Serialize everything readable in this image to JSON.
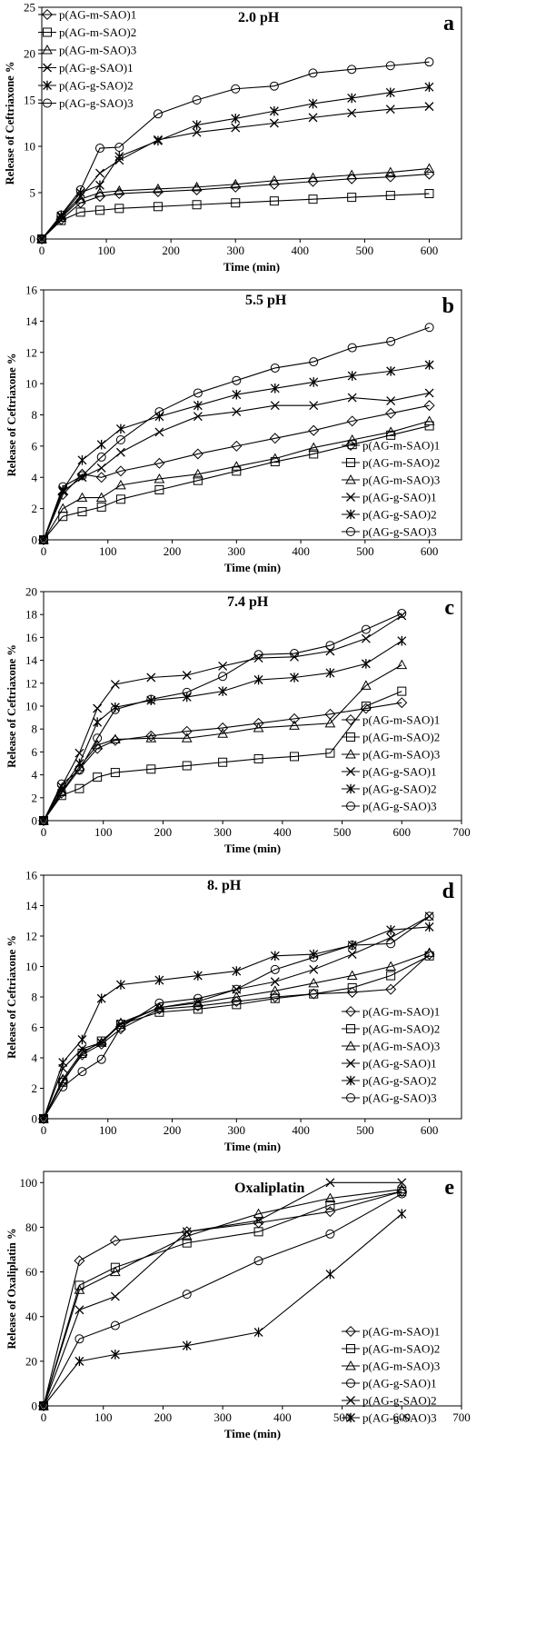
{
  "chart_data": [
    {
      "type": "line",
      "panel_label": "a",
      "title": "2.0 pH",
      "xlabel": "Time (min)",
      "ylabel": "Release of  Ceftriaxone %",
      "xlim": [
        0,
        650
      ],
      "ylim": [
        0,
        25
      ],
      "xticks": [
        0,
        100,
        200,
        300,
        400,
        500,
        600
      ],
      "yticks": [
        0,
        5,
        10,
        15,
        20,
        25
      ],
      "legend_position": "top-left",
      "series": [
        {
          "name": "p(AG-m-SAO)1",
          "marker": "diamond",
          "x": [
            0,
            30,
            60,
            90,
            120,
            180,
            240,
            300,
            360,
            420,
            480,
            540,
            600
          ],
          "y": [
            0,
            2.1,
            3.9,
            4.6,
            4.9,
            5.1,
            5.3,
            5.6,
            5.9,
            6.2,
            6.5,
            6.7,
            7.0
          ]
        },
        {
          "name": "p(AG-m-SAO)2",
          "marker": "square",
          "x": [
            0,
            30,
            60,
            90,
            120,
            180,
            240,
            300,
            360,
            420,
            480,
            540,
            600
          ],
          "y": [
            0,
            2.0,
            2.9,
            3.1,
            3.3,
            3.5,
            3.7,
            3.9,
            4.1,
            4.3,
            4.5,
            4.7,
            4.9
          ]
        },
        {
          "name": "p(AG-m-SAO)3",
          "marker": "triangle",
          "x": [
            0,
            30,
            60,
            90,
            120,
            180,
            240,
            300,
            360,
            420,
            480,
            540,
            600
          ],
          "y": [
            0,
            2.3,
            4.3,
            5.0,
            5.2,
            5.4,
            5.6,
            5.9,
            6.3,
            6.6,
            6.9,
            7.2,
            7.6
          ]
        },
        {
          "name": "p(AG-g-SAO)1",
          "marker": "x",
          "x": [
            0,
            30,
            60,
            90,
            120,
            180,
            240,
            300,
            360,
            420,
            480,
            540,
            600
          ],
          "y": [
            0,
            2.4,
            4.6,
            7.1,
            8.5,
            10.7,
            11.5,
            12.0,
            12.5,
            13.1,
            13.6,
            14.0,
            14.3
          ]
        },
        {
          "name": "p(AG-g-SAO)2",
          "marker": "asterisk",
          "x": [
            0,
            30,
            60,
            90,
            120,
            180,
            240,
            300,
            360,
            420,
            480,
            540,
            600
          ],
          "y": [
            0,
            2.5,
            5.0,
            5.8,
            8.9,
            10.6,
            12.3,
            13.0,
            13.8,
            14.6,
            15.2,
            15.8,
            16.4
          ]
        },
        {
          "name": "p(AG-g-SAO)3",
          "marker": "circle",
          "x": [
            0,
            30,
            60,
            90,
            120,
            180,
            240,
            300,
            360,
            420,
            480,
            540,
            600
          ],
          "y": [
            0,
            2.6,
            5.3,
            9.8,
            9.9,
            13.5,
            15.0,
            16.2,
            16.5,
            17.9,
            18.3,
            18.7,
            19.1
          ]
        }
      ]
    },
    {
      "type": "line",
      "panel_label": "b",
      "title": "5.5 pH",
      "xlabel": "Time (min)",
      "ylabel": "Release of Ceftriaxone %",
      "xlim": [
        0,
        650
      ],
      "ylim": [
        0,
        16
      ],
      "xticks": [
        0,
        100,
        200,
        300,
        400,
        500,
        600
      ],
      "yticks": [
        0,
        2,
        4,
        6,
        8,
        10,
        12,
        14,
        16
      ],
      "legend_position": "bottom-right",
      "series": [
        {
          "name": "p(AG-m-SAO)1",
          "marker": "diamond",
          "x": [
            0,
            30,
            60,
            90,
            120,
            180,
            240,
            300,
            360,
            420,
            480,
            540,
            600
          ],
          "y": [
            0,
            2.9,
            4.2,
            4.0,
            4.4,
            4.9,
            5.5,
            6.0,
            6.5,
            7.0,
            7.6,
            8.1,
            8.6
          ]
        },
        {
          "name": "p(AG-m-SAO)2",
          "marker": "square",
          "x": [
            0,
            30,
            60,
            90,
            120,
            180,
            240,
            300,
            360,
            420,
            480,
            540,
            600
          ],
          "y": [
            0,
            1.5,
            1.8,
            2.1,
            2.6,
            3.2,
            3.8,
            4.4,
            5.0,
            5.5,
            6.1,
            6.7,
            7.3
          ]
        },
        {
          "name": "p(AG-m-SAO)3",
          "marker": "triangle",
          "x": [
            0,
            30,
            60,
            90,
            120,
            180,
            240,
            300,
            360,
            420,
            480,
            540,
            600
          ],
          "y": [
            0,
            2.0,
            2.7,
            2.7,
            3.5,
            3.9,
            4.2,
            4.7,
            5.2,
            5.9,
            6.4,
            6.9,
            7.6
          ]
        },
        {
          "name": "p(AG-g-SAO)1",
          "marker": "x",
          "x": [
            0,
            30,
            60,
            90,
            120,
            180,
            240,
            300,
            360,
            420,
            480,
            540,
            600
          ],
          "y": [
            0,
            3.1,
            4.0,
            4.6,
            5.6,
            6.9,
            7.9,
            8.2,
            8.6,
            8.6,
            9.1,
            8.9,
            9.4
          ]
        },
        {
          "name": "p(AG-g-SAO)2",
          "marker": "asterisk",
          "x": [
            0,
            30,
            60,
            90,
            120,
            180,
            240,
            300,
            360,
            420,
            480,
            540,
            600
          ],
          "y": [
            0,
            3.2,
            5.1,
            6.1,
            7.1,
            7.9,
            8.6,
            9.3,
            9.7,
            10.1,
            10.5,
            10.8,
            11.2
          ]
        },
        {
          "name": "p(AG-g-SAO)3",
          "marker": "circle",
          "x": [
            0,
            30,
            60,
            90,
            120,
            180,
            240,
            300,
            360,
            420,
            480,
            540,
            600
          ],
          "y": [
            0,
            3.4,
            4.1,
            5.3,
            6.4,
            8.2,
            9.4,
            10.2,
            11.0,
            11.4,
            12.3,
            12.7,
            13.6
          ]
        }
      ]
    },
    {
      "type": "line",
      "panel_label": "c",
      "title": "7.4 pH",
      "xlabel": "Time (min)",
      "ylabel": "Release of  Ceftriaxone %",
      "xlim": [
        0,
        700
      ],
      "ylim": [
        0,
        20
      ],
      "xticks": [
        0,
        100,
        200,
        300,
        400,
        500,
        600,
        700
      ],
      "yticks": [
        0,
        2,
        4,
        6,
        8,
        10,
        12,
        14,
        16,
        18,
        20
      ],
      "legend_position": "bottom-right",
      "series": [
        {
          "name": "p(AG-m-SAO)1",
          "marker": "diamond",
          "x": [
            0,
            30,
            60,
            90,
            120,
            180,
            240,
            300,
            360,
            420,
            480,
            540,
            600
          ],
          "y": [
            0,
            2.4,
            4.5,
            6.3,
            7.0,
            7.4,
            7.8,
            8.1,
            8.5,
            8.9,
            9.3,
            9.8,
            10.3
          ]
        },
        {
          "name": "p(AG-m-SAO)2",
          "marker": "square",
          "x": [
            0,
            30,
            60,
            90,
            120,
            180,
            240,
            300,
            360,
            420,
            480,
            540,
            600
          ],
          "y": [
            0,
            2.2,
            2.8,
            3.8,
            4.2,
            4.5,
            4.8,
            5.1,
            5.4,
            5.6,
            5.9,
            10.0,
            11.3
          ]
        },
        {
          "name": "p(AG-m-SAO)3",
          "marker": "triangle",
          "x": [
            0,
            30,
            60,
            90,
            120,
            180,
            240,
            300,
            360,
            420,
            480,
            540,
            600
          ],
          "y": [
            0,
            2.5,
            4.7,
            6.6,
            7.1,
            7.2,
            7.2,
            7.6,
            8.1,
            8.3,
            8.5,
            11.8,
            13.6
          ]
        },
        {
          "name": "p(AG-g-SAO)1",
          "marker": "x",
          "x": [
            0,
            30,
            60,
            90,
            120,
            180,
            240,
            300,
            360,
            420,
            480,
            540,
            600
          ],
          "y": [
            0,
            3.0,
            5.9,
            9.8,
            11.9,
            12.5,
            12.7,
            13.5,
            14.2,
            14.3,
            14.8,
            15.9,
            17.9
          ]
        },
        {
          "name": "p(AG-g-SAO)2",
          "marker": "asterisk",
          "x": [
            0,
            30,
            60,
            90,
            120,
            180,
            240,
            300,
            360,
            420,
            480,
            540,
            600
          ],
          "y": [
            0,
            2.7,
            5.0,
            8.6,
            9.9,
            10.5,
            10.8,
            11.3,
            12.3,
            12.5,
            12.9,
            13.7,
            15.7
          ]
        },
        {
          "name": "p(AG-g-SAO)3",
          "marker": "circle",
          "x": [
            0,
            30,
            60,
            90,
            120,
            180,
            240,
            300,
            360,
            420,
            480,
            540,
            600
          ],
          "y": [
            0,
            3.2,
            4.4,
            7.2,
            9.7,
            10.6,
            11.2,
            12.6,
            14.5,
            14.6,
            15.3,
            16.7,
            18.1
          ]
        }
      ]
    },
    {
      "type": "line",
      "panel_label": "d",
      "title": "8.  pH",
      "xlabel": "Time (min)",
      "ylabel": "Release of Ceftriaxone %",
      "xlim": [
        0,
        650
      ],
      "ylim": [
        0,
        16
      ],
      "xticks": [
        0,
        100,
        200,
        300,
        400,
        500,
        600
      ],
      "yticks": [
        0,
        2,
        4,
        6,
        8,
        10,
        12,
        14,
        16
      ],
      "legend_position": "bottom-right",
      "series": [
        {
          "name": "p(AG-m-SAO)1",
          "marker": "diamond",
          "x": [
            0,
            30,
            60,
            90,
            120,
            180,
            240,
            300,
            360,
            420,
            480,
            540,
            600
          ],
          "y": [
            0,
            2.5,
            4.2,
            4.9,
            5.9,
            7.2,
            7.4,
            7.7,
            8.0,
            8.2,
            8.3,
            8.5,
            10.8
          ]
        },
        {
          "name": "p(AG-m-SAO)2",
          "marker": "square",
          "x": [
            0,
            30,
            60,
            90,
            120,
            180,
            240,
            300,
            360,
            420,
            480,
            540,
            600
          ],
          "y": [
            0,
            2.4,
            4.3,
            5.1,
            6.2,
            7.0,
            7.2,
            7.5,
            7.9,
            8.2,
            8.6,
            9.4,
            10.7
          ]
        },
        {
          "name": "p(AG-m-SAO)3",
          "marker": "triangle",
          "x": [
            0,
            30,
            60,
            90,
            120,
            180,
            240,
            300,
            360,
            420,
            480,
            540,
            600
          ],
          "y": [
            0,
            2.6,
            4.4,
            5.0,
            6.3,
            7.3,
            7.6,
            8.0,
            8.4,
            8.9,
            9.4,
            10.0,
            10.9
          ]
        },
        {
          "name": "p(AG-g-SAO)1",
          "marker": "x",
          "x": [
            0,
            30,
            60,
            90,
            120,
            180,
            240,
            300,
            360,
            420,
            480,
            540,
            600
          ],
          "y": [
            0,
            3.3,
            4.6,
            5.0,
            6.2,
            7.3,
            7.7,
            8.5,
            9.0,
            9.8,
            10.8,
            11.9,
            13.3
          ]
        },
        {
          "name": "p(AG-g-SAO)2",
          "marker": "asterisk",
          "x": [
            0,
            30,
            60,
            90,
            120,
            180,
            240,
            300,
            360,
            420,
            480,
            540,
            600
          ],
          "y": [
            0,
            3.7,
            5.2,
            7.9,
            8.8,
            9.1,
            9.4,
            9.7,
            10.7,
            10.8,
            11.4,
            12.4,
            12.6
          ]
        },
        {
          "name": "p(AG-g-SAO)3",
          "marker": "circle",
          "x": [
            0,
            30,
            60,
            90,
            120,
            180,
            240,
            300,
            360,
            420,
            480,
            540,
            600
          ],
          "y": [
            0,
            2.1,
            3.1,
            3.9,
            6.0,
            7.6,
            7.9,
            8.5,
            9.8,
            10.6,
            11.4,
            11.5,
            13.3
          ]
        }
      ]
    },
    {
      "type": "line",
      "panel_label": "e",
      "title": "Oxaliplatin",
      "xlabel": "Time (min)",
      "ylabel": "Release of Oxaliplatin %",
      "xlim": [
        0,
        700
      ],
      "ylim": [
        0,
        105
      ],
      "xticks": [
        0,
        100,
        200,
        300,
        400,
        500,
        600,
        700
      ],
      "yticks": [
        0,
        20,
        40,
        60,
        80,
        100
      ],
      "legend_position": "bottom-right",
      "series": [
        {
          "name": "p(AG-m-SAO)1",
          "marker": "diamond",
          "x": [
            0,
            60,
            120,
            240,
            360,
            480,
            600
          ],
          "y": [
            0,
            65,
            74,
            78,
            82,
            87,
            96
          ]
        },
        {
          "name": "p(AG-m-SAO)2",
          "marker": "square",
          "x": [
            0,
            60,
            120,
            240,
            360,
            480,
            600
          ],
          "y": [
            0,
            54,
            62,
            73,
            78,
            90,
            96
          ]
        },
        {
          "name": "p(AG-m-SAO)3",
          "marker": "triangle",
          "x": [
            0,
            60,
            120,
            240,
            360,
            480,
            600
          ],
          "y": [
            0,
            52,
            60,
            76,
            86,
            93,
            97
          ]
        },
        {
          "name": "p(AG-g-SAO)1",
          "marker": "circle",
          "x": [
            0,
            60,
            120,
            240,
            360,
            480,
            600
          ],
          "y": [
            0,
            30,
            36,
            50,
            65,
            77,
            95
          ]
        },
        {
          "name": "p(AG-g-SAO)2",
          "marker": "x",
          "x": [
            0,
            60,
            120,
            240,
            360,
            480,
            600
          ],
          "y": [
            0,
            43,
            49,
            78,
            83,
            100,
            100
          ]
        },
        {
          "name": "p(AG-g-SAO)3",
          "marker": "asterisk",
          "x": [
            0,
            60,
            120,
            240,
            360,
            480,
            600
          ],
          "y": [
            0,
            20,
            23,
            27,
            33,
            59,
            86
          ]
        }
      ]
    }
  ]
}
